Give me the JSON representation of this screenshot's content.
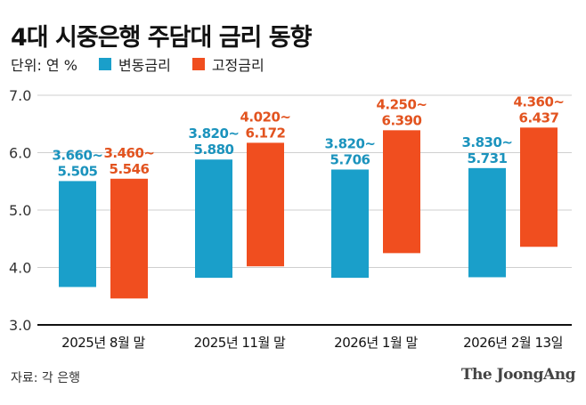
{
  "chart_data": {
    "type": "bar",
    "title": "4대 시중은행 주담대 금리 동향",
    "unit_label": "단위: 연 %",
    "categories": [
      "2025년 8월 말",
      "2025년 11월 말",
      "2026년 1월 말",
      "2026년 2월 13일"
    ],
    "series": [
      {
        "name": "변동금리",
        "color": "#1a9fca",
        "label_color": "#1b93bd",
        "low": [
          3.66,
          3.82,
          3.82,
          3.83
        ],
        "high": [
          5.505,
          5.88,
          5.706,
          5.731
        ],
        "labels": [
          [
            "3.660~",
            "5.505"
          ],
          [
            "3.820~",
            "5.880"
          ],
          [
            "3.820~",
            "5.706"
          ],
          [
            "3.830~",
            "5.731"
          ]
        ]
      },
      {
        "name": "고정금리",
        "color": "#f04e1f",
        "label_color": "#e2531f",
        "low": [
          3.46,
          4.02,
          4.25,
          4.36
        ],
        "high": [
          5.546,
          6.172,
          6.39,
          6.437
        ],
        "labels": [
          [
            "3.460~",
            "5.546"
          ],
          [
            "4.020~",
            "6.172"
          ],
          [
            "4.250~",
            "6.390"
          ],
          [
            "4.360~",
            "6.437"
          ]
        ]
      }
    ],
    "ylim": [
      3.0,
      7.0
    ],
    "yticks": [
      "3.0",
      "4.0",
      "5.0",
      "6.0",
      "7.0"
    ],
    "grid": true,
    "legend_placement": "top-left"
  },
  "footer": {
    "source": "자료: 각 은행",
    "logo": "The JoongAng"
  }
}
